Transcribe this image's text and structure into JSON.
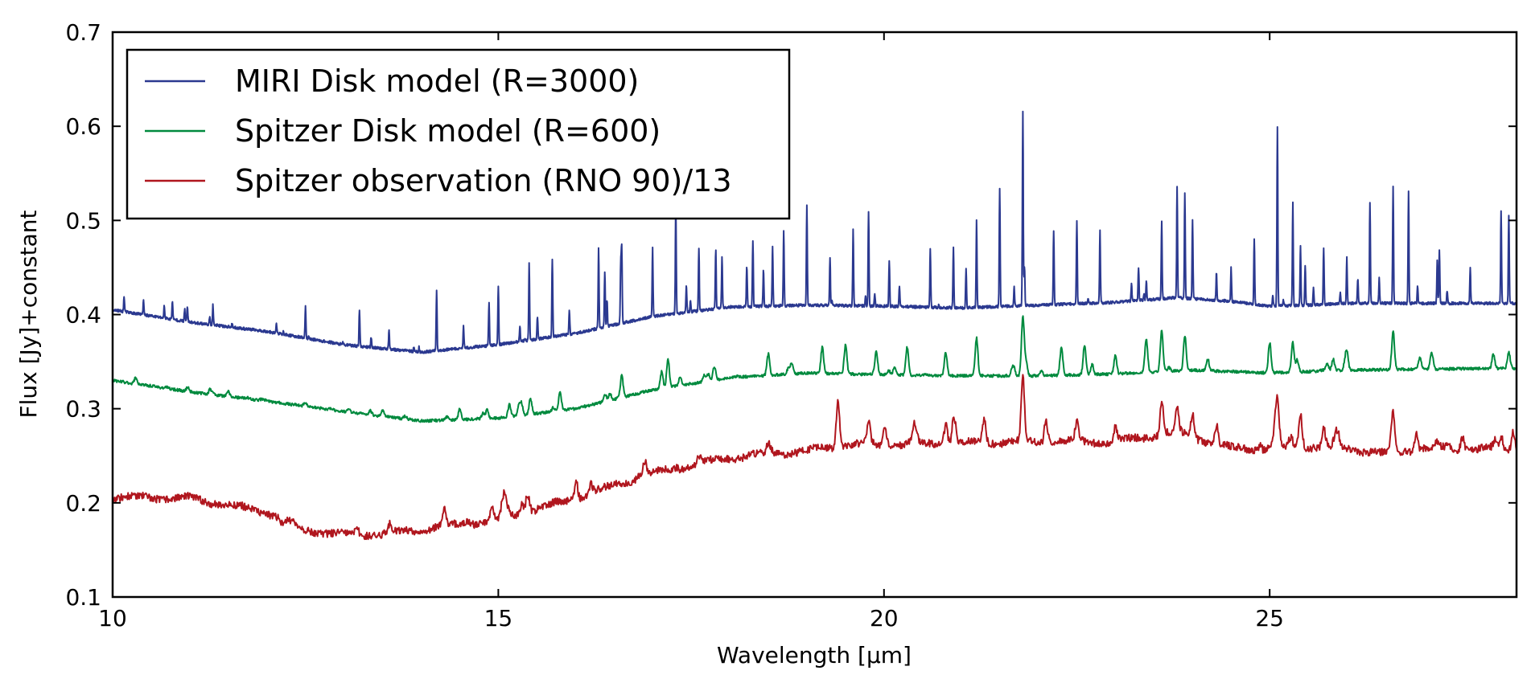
{
  "chart_data": {
    "type": "line",
    "title": "",
    "xlabel": "Wavelength [μm]",
    "ylabel": "Flux [Jy]+constant",
    "xlim": [
      10,
      28.2
    ],
    "ylim": [
      0.1,
      0.7
    ],
    "xticks": [
      10,
      15,
      20,
      25
    ],
    "yticks": [
      0.1,
      0.2,
      0.3,
      0.4,
      0.5,
      0.6,
      0.7
    ],
    "ytick_labels": [
      "0.1",
      "0.2",
      "0.3",
      "0.4",
      "0.5",
      "0.6",
      "0.7"
    ],
    "grid": false,
    "legend_position": "top-left",
    "series": [
      {
        "name": "MIRI Disk model (R=3000)",
        "color": "#2b3990",
        "baseline": [
          [
            10,
            0.405
          ],
          [
            11,
            0.392
          ],
          [
            12,
            0.382
          ],
          [
            13,
            0.368
          ],
          [
            14,
            0.36
          ],
          [
            15,
            0.368
          ],
          [
            16,
            0.38
          ],
          [
            17,
            0.398
          ],
          [
            18,
            0.408
          ],
          [
            19,
            0.41
          ],
          [
            20,
            0.409
          ],
          [
            21,
            0.407
          ],
          [
            22,
            0.41
          ],
          [
            23,
            0.413
          ],
          [
            23.8,
            0.418
          ],
          [
            24.5,
            0.414
          ],
          [
            25,
            0.409
          ],
          [
            25.5,
            0.41
          ],
          [
            26,
            0.412
          ],
          [
            27,
            0.412
          ],
          [
            28.2,
            0.412
          ]
        ],
        "peaks": [
          [
            10.4,
            0.415
          ],
          [
            11.3,
            0.41
          ],
          [
            12.5,
            0.408
          ],
          [
            13.2,
            0.405
          ],
          [
            14.2,
            0.425
          ],
          [
            15.0,
            0.43
          ],
          [
            15.4,
            0.455
          ],
          [
            15.7,
            0.46
          ],
          [
            16.3,
            0.47
          ],
          [
            16.6,
            0.47
          ],
          [
            17.0,
            0.47
          ],
          [
            17.3,
            0.475
          ],
          [
            17.6,
            0.47
          ],
          [
            17.9,
            0.462
          ],
          [
            18.3,
            0.478
          ],
          [
            18.7,
            0.49
          ],
          [
            19.0,
            0.515
          ],
          [
            19.3,
            0.46
          ],
          [
            19.6,
            0.49
          ],
          [
            19.8,
            0.51
          ],
          [
            20.2,
            0.43
          ],
          [
            20.6,
            0.47
          ],
          [
            20.9,
            0.47
          ],
          [
            21.2,
            0.5
          ],
          [
            21.5,
            0.535
          ],
          [
            21.8,
            0.617
          ],
          [
            22.2,
            0.49
          ],
          [
            22.5,
            0.5
          ],
          [
            22.8,
            0.49
          ],
          [
            23.3,
            0.45
          ],
          [
            23.6,
            0.5
          ],
          [
            23.8,
            0.535
          ],
          [
            23.9,
            0.53
          ],
          [
            24.0,
            0.5
          ],
          [
            24.5,
            0.45
          ],
          [
            24.8,
            0.48
          ],
          [
            25.1,
            0.598
          ],
          [
            25.3,
            0.52
          ],
          [
            25.7,
            0.47
          ],
          [
            26.0,
            0.46
          ],
          [
            26.3,
            0.52
          ],
          [
            26.6,
            0.535
          ],
          [
            26.8,
            0.53
          ],
          [
            27.2,
            0.47
          ],
          [
            27.6,
            0.45
          ],
          [
            28.0,
            0.51
          ],
          [
            28.1,
            0.505
          ]
        ]
      },
      {
        "name": "Spitzer Disk model (R=600)",
        "color": "#008a3e",
        "baseline": [
          [
            10,
            0.33
          ],
          [
            11,
            0.318
          ],
          [
            12,
            0.308
          ],
          [
            13,
            0.297
          ],
          [
            14,
            0.287
          ],
          [
            15,
            0.29
          ],
          [
            16,
            0.3
          ],
          [
            17,
            0.32
          ],
          [
            18,
            0.333
          ],
          [
            19,
            0.338
          ],
          [
            20,
            0.336
          ],
          [
            21,
            0.335
          ],
          [
            22,
            0.335
          ],
          [
            23,
            0.337
          ],
          [
            24,
            0.341
          ],
          [
            25,
            0.338
          ],
          [
            26,
            0.341
          ],
          [
            27,
            0.342
          ],
          [
            28.2,
            0.343
          ]
        ],
        "peaks": [
          [
            10.3,
            0.333
          ],
          [
            11.5,
            0.318
          ],
          [
            12.5,
            0.307
          ],
          [
            13.5,
            0.298
          ],
          [
            14.5,
            0.3
          ],
          [
            15.3,
            0.305
          ],
          [
            15.8,
            0.318
          ],
          [
            16.6,
            0.335
          ],
          [
            17.2,
            0.352
          ],
          [
            17.8,
            0.345
          ],
          [
            18.5,
            0.358
          ],
          [
            19.2,
            0.365
          ],
          [
            19.5,
            0.36
          ],
          [
            19.9,
            0.36
          ],
          [
            20.3,
            0.365
          ],
          [
            20.8,
            0.36
          ],
          [
            21.2,
            0.375
          ],
          [
            21.8,
            0.398
          ],
          [
            22.3,
            0.365
          ],
          [
            22.6,
            0.368
          ],
          [
            23.0,
            0.357
          ],
          [
            23.4,
            0.375
          ],
          [
            23.6,
            0.383
          ],
          [
            23.9,
            0.378
          ],
          [
            25.0,
            0.37
          ],
          [
            25.3,
            0.37
          ],
          [
            26.0,
            0.36
          ],
          [
            26.6,
            0.382
          ],
          [
            27.1,
            0.36
          ],
          [
            27.9,
            0.358
          ],
          [
            28.1,
            0.36
          ]
        ]
      },
      {
        "name": "Spitzer observation (RNO 90)/13",
        "color": "#b0161e",
        "baseline": [
          [
            10,
            0.206
          ],
          [
            11,
            0.205
          ],
          [
            12,
            0.19
          ],
          [
            12.5,
            0.171
          ],
          [
            13,
            0.166
          ],
          [
            13.5,
            0.167
          ],
          [
            14,
            0.172
          ],
          [
            15,
            0.182
          ],
          [
            16,
            0.205
          ],
          [
            17,
            0.232
          ],
          [
            18,
            0.248
          ],
          [
            19,
            0.255
          ],
          [
            19.5,
            0.262
          ],
          [
            20,
            0.262
          ],
          [
            21,
            0.264
          ],
          [
            22,
            0.265
          ],
          [
            23,
            0.265
          ],
          [
            23.8,
            0.275
          ],
          [
            24,
            0.27
          ],
          [
            24.5,
            0.258
          ],
          [
            25,
            0.257
          ],
          [
            25.5,
            0.26
          ],
          [
            26,
            0.258
          ],
          [
            26.5,
            0.252
          ],
          [
            27,
            0.258
          ],
          [
            28.2,
            0.257
          ]
        ],
        "peaks": [
          [
            12.2,
            0.178
          ],
          [
            13.6,
            0.175
          ],
          [
            14.3,
            0.19
          ],
          [
            15.4,
            0.198
          ],
          [
            16.2,
            0.22
          ],
          [
            16.9,
            0.245
          ],
          [
            17.6,
            0.25
          ],
          [
            18.5,
            0.26
          ],
          [
            19.4,
            0.295
          ],
          [
            19.8,
            0.285
          ],
          [
            20.4,
            0.283
          ],
          [
            20.8,
            0.285
          ],
          [
            21.3,
            0.29
          ],
          [
            21.8,
            0.332
          ],
          [
            22.1,
            0.29
          ],
          [
            22.5,
            0.285
          ],
          [
            23.0,
            0.28
          ],
          [
            23.6,
            0.308
          ],
          [
            23.8,
            0.3
          ],
          [
            24.0,
            0.295
          ],
          [
            25.1,
            0.305
          ],
          [
            25.4,
            0.295
          ],
          [
            25.7,
            0.28
          ],
          [
            26.6,
            0.296
          ],
          [
            26.9,
            0.275
          ],
          [
            27.5,
            0.272
          ],
          [
            28.0,
            0.27
          ]
        ]
      }
    ]
  }
}
